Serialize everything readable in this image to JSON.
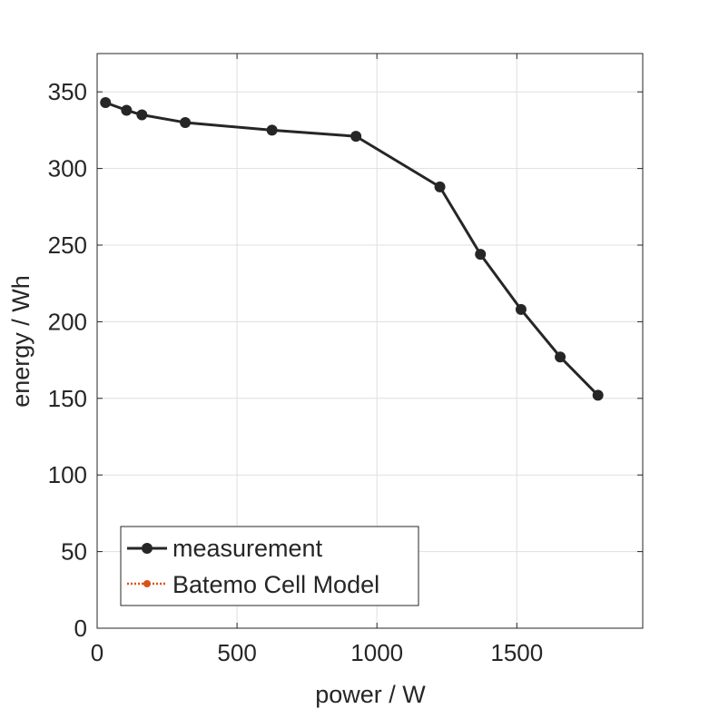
{
  "chart_data": {
    "type": "line",
    "title": "",
    "xlabel": "power / W",
    "ylabel": "energy / Wh",
    "xlim": [
      0,
      1950
    ],
    "ylim": [
      0,
      375
    ],
    "xticks": [
      0,
      500,
      1000,
      1500
    ],
    "yticks": [
      0,
      50,
      100,
      150,
      200,
      250,
      300,
      350
    ],
    "grid": true,
    "legend_position": "bottom-left",
    "series": [
      {
        "name": "measurement",
        "color": "#262626",
        "line_style": "solid",
        "x": [
          30,
          105,
          160,
          315,
          625,
          925,
          1225,
          1370,
          1515,
          1655,
          1790
        ],
        "y": [
          343,
          338,
          335,
          330,
          325,
          321,
          288,
          244,
          208,
          177,
          152
        ]
      },
      {
        "name": "Batemo Cell Model",
        "color": "#D95319",
        "line_style": "dotted",
        "x": [],
        "y": []
      }
    ]
  }
}
